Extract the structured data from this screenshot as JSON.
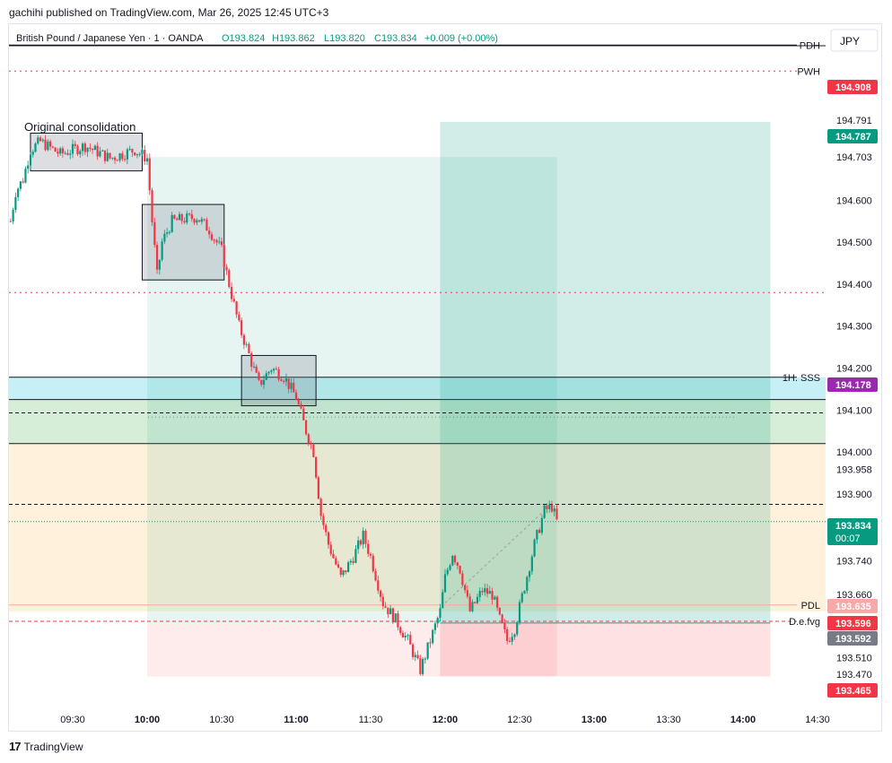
{
  "publish_note": "gachihi published on TradingView.com, Mar 26, 2025 12:45 UTC+3",
  "currency_button": "JPY",
  "brand": {
    "logo": "17",
    "name": "TradingView"
  },
  "legend": {
    "symbol": "British Pound / Japanese Yen · 1 · OANDA",
    "open": "O193.824",
    "high": "H193.862",
    "low": "L193.820",
    "close": "C193.834",
    "change": "+0.009 (+0.00%)"
  },
  "colors": {
    "up": "#089981",
    "down": "#f23645",
    "red_label": "#f23645",
    "green_label": "#089981",
    "purple_label": "#9c27b0",
    "grey_label": "#787b86",
    "pink_label": "#f7a9a8"
  },
  "chart_data": {
    "type": "candlestick",
    "symbol": "GBPJPY",
    "timeframe": "1",
    "yscale_ticks": [
      "194.791",
      "194.703",
      "194.600",
      "194.500",
      "194.400",
      "194.300",
      "194.200",
      "194.100",
      "194.000",
      "193.958",
      "193.900",
      "193.740",
      "193.660",
      "193.510",
      "193.470"
    ],
    "x_ticks": [
      "09:30",
      "10:00",
      "10:30",
      "11:00",
      "11:30",
      "12:00",
      "12:30",
      "13:00",
      "13:30",
      "14:00",
      "14:30"
    ],
    "path_points": [
      [
        "09:05",
        194.55
      ],
      [
        "09:07",
        194.62
      ],
      [
        "09:10",
        194.65
      ],
      [
        "09:13",
        194.72
      ],
      [
        "09:17",
        194.74
      ],
      [
        "09:25",
        194.71
      ],
      [
        "09:35",
        194.73
      ],
      [
        "09:45",
        194.7
      ],
      [
        "09:55",
        194.72
      ],
      [
        "10:00",
        194.7
      ],
      [
        "10:02",
        194.55
      ],
      [
        "10:04",
        194.42
      ],
      [
        "10:06",
        194.5
      ],
      [
        "10:10",
        194.55
      ],
      [
        "10:20",
        194.56
      ],
      [
        "10:25",
        194.53
      ],
      [
        "10:30",
        194.48
      ],
      [
        "10:33",
        194.4
      ],
      [
        "10:37",
        194.3
      ],
      [
        "10:40",
        194.25
      ],
      [
        "10:45",
        194.16
      ],
      [
        "10:50",
        194.2
      ],
      [
        "10:55",
        194.18
      ],
      [
        "11:00",
        194.13
      ],
      [
        "11:04",
        194.05
      ],
      [
        "11:07",
        194.0
      ],
      [
        "11:10",
        193.85
      ],
      [
        "11:13",
        193.78
      ],
      [
        "11:18",
        193.7
      ],
      [
        "11:23",
        193.75
      ],
      [
        "11:27",
        193.8
      ],
      [
        "11:30",
        193.75
      ],
      [
        "11:35",
        193.64
      ],
      [
        "11:40",
        193.6
      ],
      [
        "11:45",
        193.55
      ],
      [
        "11:50",
        193.48
      ],
      [
        "11:54",
        193.55
      ],
      [
        "11:58",
        193.62
      ],
      [
        "12:00",
        193.7
      ],
      [
        "12:03",
        193.76
      ],
      [
        "12:06",
        193.72
      ],
      [
        "12:10",
        193.62
      ],
      [
        "12:15",
        193.67
      ],
      [
        "12:19",
        193.66
      ],
      [
        "12:22",
        193.6
      ],
      [
        "12:25",
        193.55
      ],
      [
        "12:28",
        193.58
      ],
      [
        "12:32",
        193.68
      ],
      [
        "12:36",
        193.78
      ],
      [
        "12:40",
        193.86
      ],
      [
        "12:43",
        193.87
      ],
      [
        "12:45",
        193.834
      ]
    ],
    "horizontal_lines": [
      {
        "label": "PDH",
        "price": 194.97
      },
      {
        "label": "PWH",
        "price": 194.908
      },
      {
        "label": "1H. SSS",
        "price": 194.178
      },
      {
        "label": "PDL",
        "price": 193.635
      },
      {
        "label": "D.e.fvg",
        "price": 193.596
      }
    ],
    "price_labels": [
      {
        "value": "194.908",
        "kind": "red"
      },
      {
        "value": "194.787",
        "kind": "green"
      },
      {
        "value": "194.178",
        "kind": "purple"
      },
      {
        "value": "193.834",
        "kind": "green",
        "sub": "00:07"
      },
      {
        "value": "193.635",
        "kind": "pink"
      },
      {
        "value": "193.596",
        "kind": "red"
      },
      {
        "value": "193.592",
        "kind": "grey"
      },
      {
        "value": "193.465",
        "kind": "red"
      }
    ],
    "annotation": "Original consolidation",
    "consolidation_boxes": [
      {
        "t1": "09:13",
        "t2": "09:58",
        "p_high": 194.76,
        "p_low": 194.67
      },
      {
        "t1": "09:58",
        "t2": "10:31",
        "p_high": 194.59,
        "p_low": 194.41
      },
      {
        "t1": "10:38",
        "t2": "11:08",
        "p_high": 194.23,
        "p_low": 194.11
      }
    ],
    "long_position": {
      "t1": "11:58",
      "t2": "14:11",
      "entry": 193.592,
      "target": 194.787,
      "stop": 193.465
    },
    "short_position": {
      "t1": "10:00",
      "t2": "12:45",
      "entry": 193.592,
      "target": 194.703,
      "stop": 193.465
    },
    "zones": [
      {
        "name": "cyan-zone",
        "top": 194.178,
        "bottom": 194.125
      },
      {
        "name": "green-zone",
        "top": 194.125,
        "bottom": 194.02
      },
      {
        "name": "orange-zone",
        "top": 194.02,
        "bottom": 193.62
      }
    ]
  }
}
